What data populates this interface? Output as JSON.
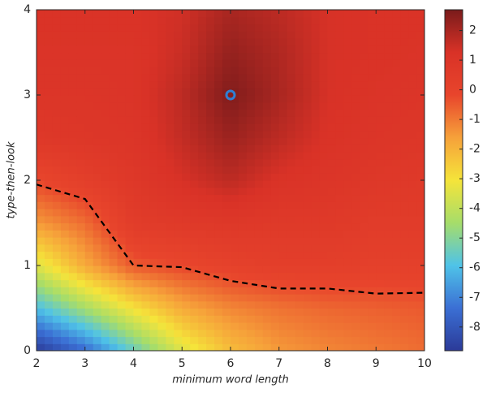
{
  "chart_data": {
    "type": "contour",
    "xlabel": "minimum word length",
    "ylabel": "type-then-look",
    "x": [
      2,
      3,
      4,
      5,
      6,
      7,
      8,
      9,
      10
    ],
    "y": [
      0,
      0.5,
      1,
      1.5,
      2,
      2.5,
      3,
      3.5,
      4
    ],
    "z": [
      [
        -8.8,
        -7.5,
        -5.5,
        -3.5,
        -2.2,
        -1.5,
        -1.2,
        -1.0,
        -0.8
      ],
      [
        -6,
        -4.5,
        -3,
        -1.8,
        -1.2,
        -0.9,
        -0.7,
        -0.6,
        -0.5
      ],
      [
        -3.5,
        -1.8,
        -0.5,
        -0.2,
        0.1,
        0.3,
        0.3,
        0.2,
        0.2
      ],
      [
        -1.5,
        -0.8,
        0.5,
        0.7,
        0.8,
        0.7,
        0.7,
        0.5,
        0.5
      ],
      [
        -0.2,
        0.3,
        0.8,
        1.3,
        1.7,
        1.2,
        1.0,
        0.8,
        0.7
      ],
      [
        0.8,
        0.9,
        1.0,
        1.6,
        2.2,
        1.7,
        1.2,
        1.0,
        0.9
      ],
      [
        1.0,
        1.0,
        1.1,
        1.7,
        2.6,
        2.0,
        1.3,
        1.1,
        1.0
      ],
      [
        1.1,
        1.1,
        1.1,
        1.5,
        2.3,
        1.9,
        1.3,
        1.2,
        1.1
      ],
      [
        1.2,
        1.2,
        1.2,
        1.4,
        2.0,
        1.7,
        1.3,
        1.2,
        1.2
      ]
    ],
    "xlim": [
      2,
      10
    ],
    "xticks": [
      2,
      3,
      4,
      5,
      6,
      7,
      8,
      9,
      10
    ],
    "ylim": [
      0,
      4
    ],
    "yticks": [
      0,
      1,
      2,
      3,
      4
    ],
    "clim": [
      -8.8,
      2.7
    ],
    "cticks": [
      -8,
      -7,
      -6,
      -5,
      -4,
      -3,
      -2,
      -1,
      0,
      1,
      2
    ],
    "colormap": [
      "#2b3a98",
      "#3b6fd4",
      "#4fc3e8",
      "#a6dd6a",
      "#f5e43a",
      "#f6a13a",
      "#e8452c",
      "#d93227",
      "#7a1b1b"
    ],
    "line": {
      "x": [
        2,
        3,
        4,
        5,
        6,
        7,
        8,
        9,
        10
      ],
      "y": [
        1.95,
        1.78,
        1.0,
        0.98,
        0.82,
        0.73,
        0.73,
        0.67,
        0.68
      ],
      "color": "#000000"
    },
    "marker": {
      "x": 6,
      "y": 3,
      "color": "#2f7fd4"
    }
  }
}
